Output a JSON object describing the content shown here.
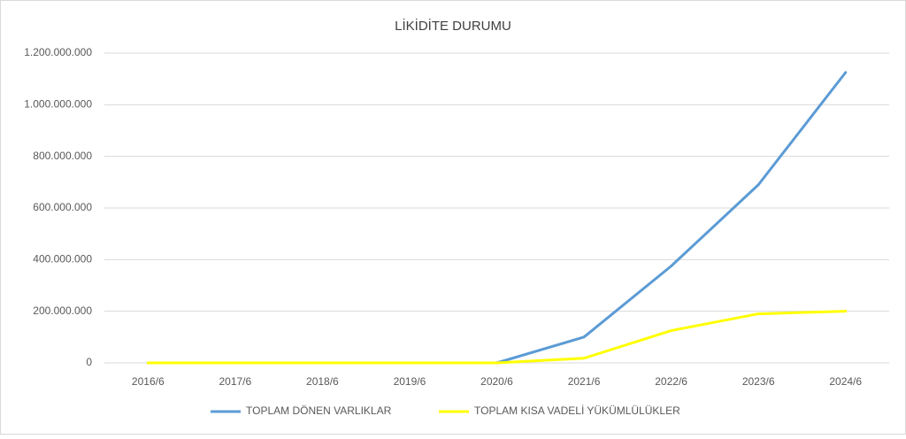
{
  "chart_data": {
    "type": "line",
    "title": "LİKİDİTE DURUMU",
    "categories": [
      "2016/6",
      "2017/6",
      "2018/6",
      "2019/6",
      "2020/6",
      "2021/6",
      "2022/6",
      "2023/6",
      "2024/6"
    ],
    "series": [
      {
        "name": "TOPLAM DÖNEN VARLIKLAR",
        "color": "#5b9bd5",
        "values": [
          0,
          0,
          0,
          0,
          0,
          100000000,
          375000000,
          690000000,
          1125000000
        ]
      },
      {
        "name": "TOPLAM KISA VADELİ YÜKÜMLÜLÜKLER",
        "color": "#ffff00",
        "values": [
          0,
          0,
          0,
          0,
          0,
          18000000,
          125000000,
          190000000,
          200000000
        ]
      }
    ],
    "ylim": [
      0,
      1200000000
    ],
    "yticks": [
      0,
      {
        "value": 200000000,
        "label": "200.000.000"
      },
      {
        "value": 400000000,
        "label": "400.000.000"
      },
      {
        "value": 600000000,
        "label": "600.000.000"
      },
      {
        "value": 800000000,
        "label": "800.000.000"
      },
      {
        "value": 1000000000,
        "label": "1.000.000.000"
      },
      {
        "value": 1200000000,
        "label": "1.200.000.000"
      }
    ],
    "grid": true
  }
}
